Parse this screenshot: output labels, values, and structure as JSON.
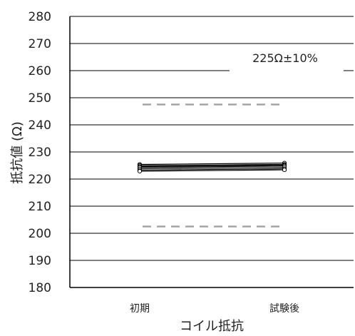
{
  "chart_data": {
    "type": "line",
    "categories": [
      "初期",
      "試験後"
    ],
    "xlabel": "コイル抵抗",
    "ylabel": "抵抗値 (Ω)",
    "ylim": [
      180,
      280
    ],
    "yticks": [
      180,
      190,
      200,
      210,
      220,
      230,
      240,
      250,
      260,
      270,
      280
    ],
    "grid": true,
    "series": [
      {
        "values": [
          225.4,
          225.9
        ]
      },
      {
        "values": [
          225.0,
          225.4
        ]
      },
      {
        "values": [
          224.6,
          225.1
        ]
      },
      {
        "values": [
          224.3,
          224.8
        ]
      },
      {
        "values": [
          223.8,
          224.3
        ]
      },
      {
        "values": [
          223.3,
          223.8
        ]
      },
      {
        "values": [
          222.9,
          223.4
        ]
      }
    ],
    "limits": {
      "upper": 247.5,
      "lower": 202.5,
      "color": "#a6a6a6"
    },
    "annotation": "225Ω±10%",
    "colors": {
      "series": "#000000",
      "grid": "#000000",
      "axis": "#000000"
    }
  }
}
